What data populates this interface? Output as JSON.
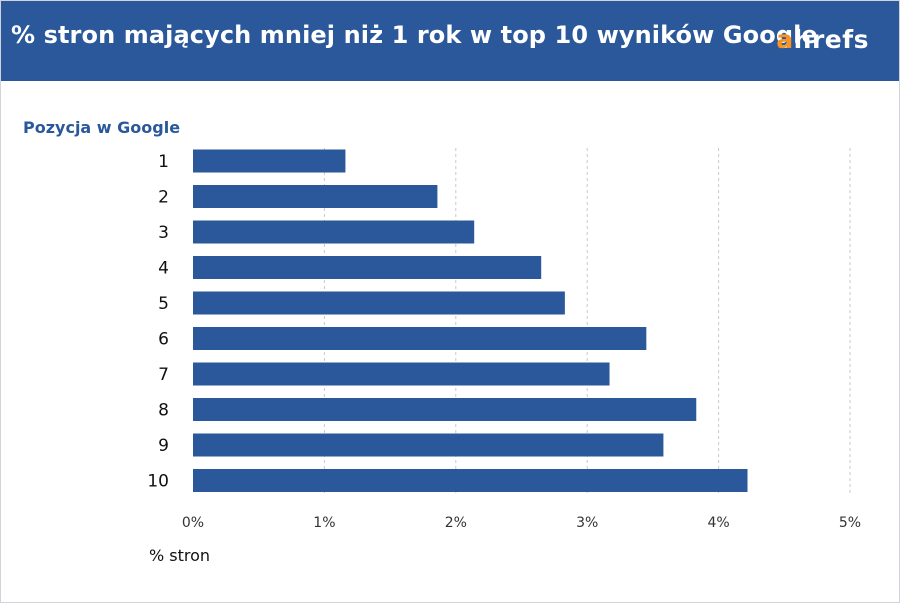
{
  "header": {
    "title": "% stron mających mniej niż 1 rok w top 10 wyników Google",
    "logo_a": "a",
    "logo_rest": "hrefs"
  },
  "chart_data": {
    "type": "bar",
    "orientation": "horizontal",
    "title": "% stron mających mniej niż 1 rok w top 10 wyników Google",
    "xlabel": "% stron",
    "ylabel": "Pozycja w Google",
    "categories": [
      "1",
      "2",
      "3",
      "4",
      "5",
      "6",
      "7",
      "8",
      "9",
      "10"
    ],
    "values": [
      1.16,
      1.86,
      2.14,
      2.65,
      2.83,
      3.45,
      3.17,
      3.83,
      3.58,
      4.22
    ],
    "xlim": [
      0,
      5
    ],
    "xticks": [
      "0%",
      "1%",
      "2%",
      "3%",
      "4%",
      "5%"
    ],
    "grid": true,
    "bar_color": "#2a589a"
  },
  "colors": {
    "header_bg": "#2a589a",
    "logo_accent": "#f7931e",
    "axis_title": "#2a589a"
  }
}
